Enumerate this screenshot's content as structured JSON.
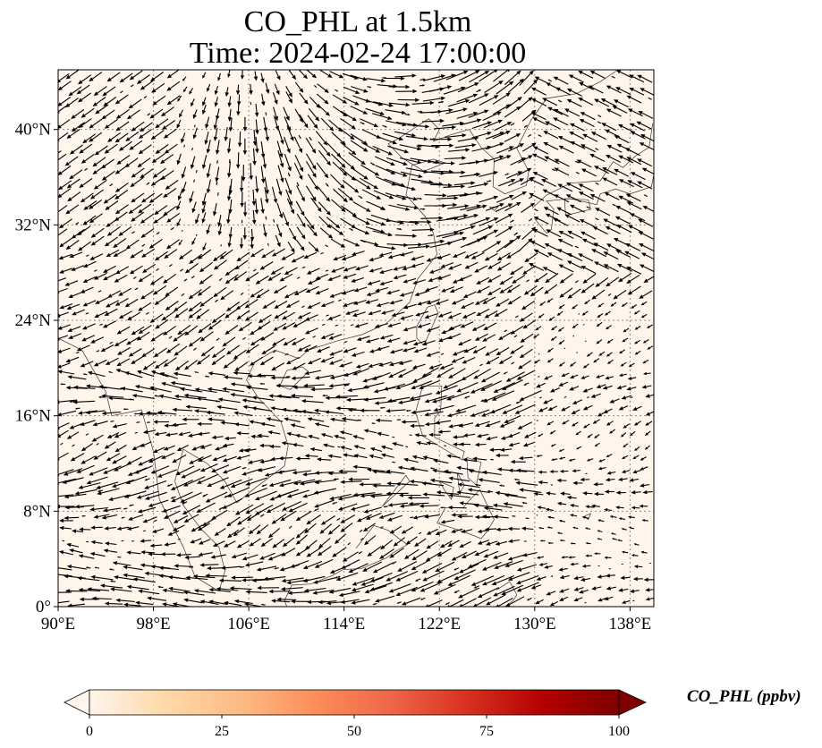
{
  "title": {
    "line1": "CO_PHL at 1.5km",
    "line2": "Time: 2024-02-24 17:00:00"
  },
  "map": {
    "extent": {
      "lon": [
        90,
        140
      ],
      "lat": [
        0,
        45
      ]
    },
    "lon_ticks": [
      {
        "value": 90,
        "label": "90°E"
      },
      {
        "value": 98,
        "label": "98°E"
      },
      {
        "value": 106,
        "label": "106°E"
      },
      {
        "value": 114,
        "label": "114°E"
      },
      {
        "value": 122,
        "label": "122°E"
      },
      {
        "value": 130,
        "label": "130°E"
      },
      {
        "value": 138,
        "label": "138°E"
      }
    ],
    "lat_ticks": [
      {
        "value": 0,
        "label": "0°"
      },
      {
        "value": 8,
        "label": "8°N"
      },
      {
        "value": 16,
        "label": "16°N"
      },
      {
        "value": 24,
        "label": "24°N"
      },
      {
        "value": 32,
        "label": "32°N"
      },
      {
        "value": 40,
        "label": "40°N"
      }
    ],
    "gridlines": true,
    "background_color": "#fff5eb",
    "layer": "wind vectors",
    "colormap": "OrRd"
  },
  "colorbar": {
    "label": "CO_PHL (ppbv)",
    "range": [
      0,
      100
    ],
    "ticks": [
      {
        "value": 0,
        "label": "0"
      },
      {
        "value": 25,
        "label": "25"
      },
      {
        "value": 50,
        "label": "50"
      },
      {
        "value": 75,
        "label": "75"
      },
      {
        "value": 100,
        "label": "100"
      }
    ],
    "colors": [
      "#fff5eb",
      "#fdd9a8",
      "#fdbb84",
      "#fc8d59",
      "#ef6548",
      "#d7301f",
      "#b30000",
      "#7f0000"
    ]
  }
}
